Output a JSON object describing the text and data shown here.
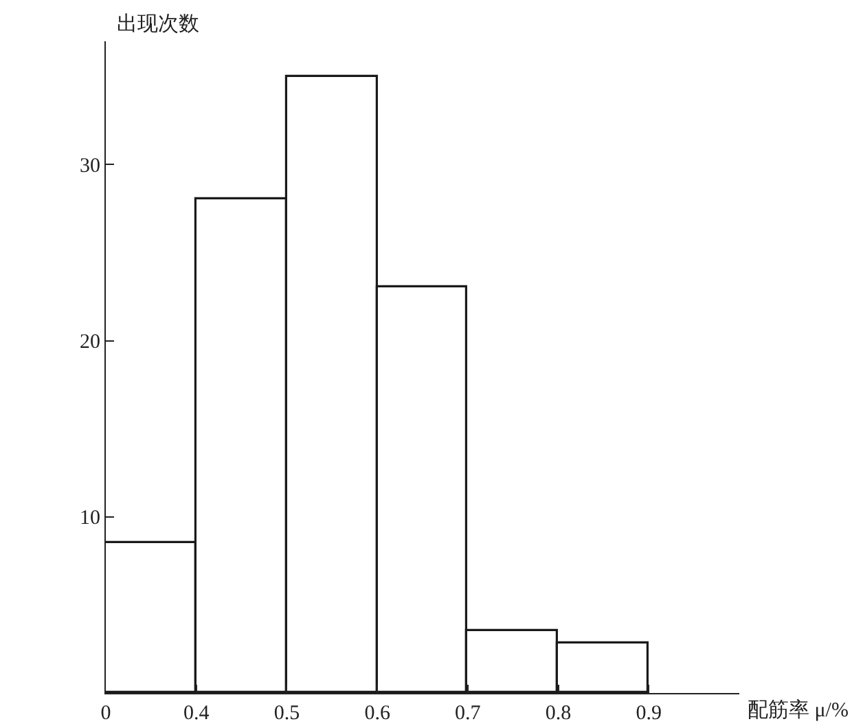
{
  "chart_data": {
    "type": "histogram",
    "xlabel": "配筋率 μ/%",
    "ylabel": "出现次数",
    "bins": [
      0.3,
      0.4,
      0.5,
      0.6,
      0.7,
      0.8,
      0.9
    ],
    "values": [
      8.5,
      28,
      35,
      23,
      3.5,
      2.8
    ],
    "color": "#1a1a1a",
    "xlim": [
      0.3,
      1.0
    ],
    "xticks": [
      {
        "value": 0.3,
        "label": "0"
      },
      0.4,
      0.5,
      0.6,
      0.7,
      0.8,
      0.9
    ],
    "ylim": [
      0,
      37
    ],
    "yticks": [
      10,
      20,
      30
    ],
    "grid": false,
    "legend": false
  }
}
